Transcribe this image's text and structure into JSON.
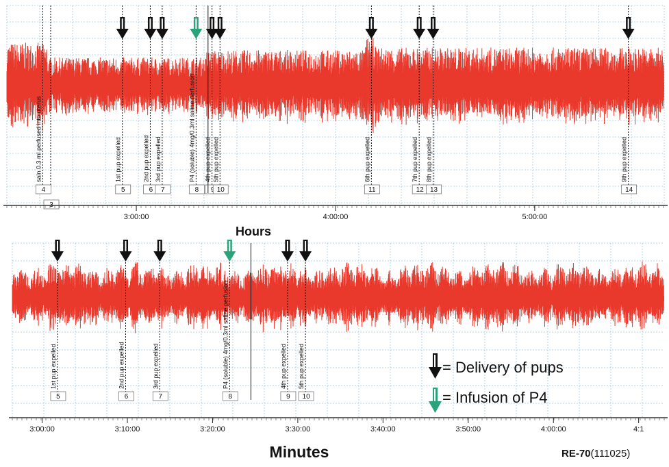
{
  "labels": {
    "hours_title": "Hours",
    "minutes_title": "Minutes",
    "legend_delivery": "= Delivery of pups",
    "legend_infusion": "= Infusion of P4",
    "credit_bold": "RE-70",
    "credit_rest": "(111025)"
  },
  "colors": {
    "trace": "#e8392c",
    "grid": "#9fc8e0",
    "delivery_arrow": "#111111",
    "infusion_arrow": "#2ca27a"
  },
  "chart_data": [
    {
      "type": "line",
      "description_axis": "Hours",
      "x_unit": "hours",
      "xlim": [
        2.35,
        5.65
      ],
      "x_ticks": [
        {
          "value": 3.0,
          "label": "3:00:00"
        },
        {
          "value": 4.0,
          "label": "4:00:00"
        },
        {
          "value": 5.0,
          "label": "5:00:00"
        }
      ],
      "event_markers": [
        {
          "num": "4",
          "x": 2.53,
          "label": "saln 0.3 ml perfused into uterus",
          "kind": "none"
        },
        {
          "num": "3",
          "x": 2.57,
          "label": "",
          "kind": "none",
          "lower": true
        },
        {
          "num": "5",
          "x": 2.93,
          "label": "1st pup expelled",
          "kind": "delivery"
        },
        {
          "num": "6",
          "x": 3.07,
          "label": "2nd pup expelled",
          "kind": "delivery"
        },
        {
          "num": "7",
          "x": 3.13,
          "label": "3rd pup expelled",
          "kind": "delivery"
        },
        {
          "num": "8",
          "x": 3.3,
          "label": "P4 (soluble) 4mg/0.3ml saline perfusion",
          "kind": "infusion"
        },
        {
          "num": "9",
          "x": 3.38,
          "label": "4th pup expelled",
          "kind": "delivery"
        },
        {
          "num": "10",
          "x": 3.42,
          "label": "5th pup expelled",
          "kind": "delivery"
        },
        {
          "num": "11",
          "x": 4.18,
          "label": "6th pup expelled",
          "kind": "delivery"
        },
        {
          "num": "12",
          "x": 4.42,
          "label": "7th pup expelled",
          "kind": "delivery"
        },
        {
          "num": "13",
          "x": 4.49,
          "label": "8th pup expelled",
          "kind": "delivery"
        },
        {
          "num": "14",
          "x": 5.47,
          "label": "9th pup expelled",
          "kind": "delivery"
        }
      ],
      "trace_bursts": [
        {
          "start": 2.35,
          "end": 2.55,
          "amplitude": 0.9
        },
        {
          "start": 2.55,
          "end": 3.35,
          "amplitude": 0.6
        },
        {
          "start": 3.35,
          "end": 4.15,
          "amplitude": 0.75
        },
        {
          "start": 4.15,
          "end": 4.2,
          "amplitude": 1.0
        },
        {
          "start": 4.2,
          "end": 5.65,
          "amplitude": 0.8
        }
      ]
    },
    {
      "type": "line",
      "description_axis": "Minutes",
      "x_unit": "minutes",
      "xlim": [
        176.5,
        253
      ],
      "x_ticks": [
        {
          "value": 180,
          "label": "3:00:00"
        },
        {
          "value": 190,
          "label": "3:10:00"
        },
        {
          "value": 200,
          "label": "3:20:00"
        },
        {
          "value": 210,
          "label": "3:30:00"
        },
        {
          "value": 220,
          "label": "3:40:00"
        },
        {
          "value": 230,
          "label": "3:50:00"
        },
        {
          "value": 240,
          "label": "4:00:00"
        },
        {
          "value": 250,
          "label": "4:1"
        }
      ],
      "event_markers": [
        {
          "num": "5",
          "x": 181.8,
          "label": "1st pup expelled",
          "kind": "delivery"
        },
        {
          "num": "6",
          "x": 189.8,
          "label": "2nd pup expelled",
          "kind": "delivery"
        },
        {
          "num": "7",
          "x": 193.8,
          "label": "3rd pup expelled",
          "kind": "delivery"
        },
        {
          "num": "8",
          "x": 202.0,
          "label": "P4 (soluble) 4mg/0.3ml saline perfusion",
          "kind": "infusion"
        },
        {
          "num": "9",
          "x": 208.8,
          "label": "4th pup expelled",
          "kind": "delivery"
        },
        {
          "num": "10",
          "x": 210.9,
          "label": "5th pup expelled",
          "kind": "delivery"
        }
      ]
    }
  ]
}
